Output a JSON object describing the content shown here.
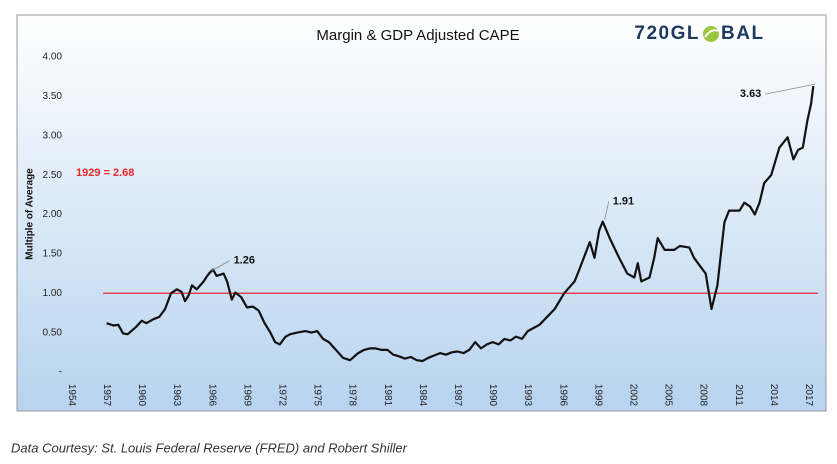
{
  "chart_data": {
    "type": "line",
    "title": "Margin & GDP Adjusted CAPE",
    "brand": [
      "720GL",
      "BAL"
    ],
    "y_label": "Multiple of Average",
    "note": "1929 = 2.68",
    "caption": "Data Courtesy: St. Louis Federal Reserve (FRED) and Robert Shiller",
    "xlim": [
      1953.7,
      2017.8
    ],
    "xticks": [
      1954,
      1957,
      1960,
      1963,
      1966,
      1969,
      1972,
      1975,
      1978,
      1981,
      1984,
      1987,
      1990,
      1993,
      1996,
      1999,
      2002,
      2005,
      2008,
      2011,
      2014,
      2017
    ],
    "ylim": [
      0,
      4
    ],
    "yticks": [
      {
        "value": 0,
        "label": "-"
      },
      {
        "value": 0.5,
        "label": "0.50"
      },
      {
        "value": 1,
        "label": "1.00"
      },
      {
        "value": 1.5,
        "label": "1.50"
      },
      {
        "value": 2,
        "label": "2.00"
      },
      {
        "value": 2.5,
        "label": "2.50"
      },
      {
        "value": 3,
        "label": "3.00"
      },
      {
        "value": 3.5,
        "label": "3.50"
      },
      {
        "value": 4,
        "label": "4.00"
      }
    ],
    "reference_line": {
      "value": 1,
      "color": "#e8262b"
    },
    "series": [
      {
        "name": "Margin & GDP Adjusted CAPE",
        "color": "#111111",
        "x": [
          1957.0,
          1957.6,
          1958.0,
          1958.4,
          1958.8,
          1959.5,
          1960.0,
          1960.4,
          1961.0,
          1961.5,
          1962.0,
          1962.5,
          1963.0,
          1963.4,
          1963.7,
          1964.0,
          1964.3,
          1964.7,
          1965.0,
          1965.3,
          1965.5,
          1965.8,
          1966.1,
          1966.4,
          1967.0,
          1967.3,
          1967.7,
          1968.0,
          1968.5,
          1969.0,
          1969.5,
          1970.0,
          1970.5,
          1971.0,
          1971.4,
          1971.8,
          1972.3,
          1972.7,
          1973.3,
          1974.0,
          1974.5,
          1975.0,
          1975.5,
          1976.0,
          1976.6,
          1977.2,
          1977.8,
          1978.5,
          1979.0,
          1979.5,
          1980.0,
          1980.5,
          1981.0,
          1981.5,
          1982.0,
          1982.5,
          1983.0,
          1983.5,
          1984.0,
          1984.5,
          1985.0,
          1985.5,
          1986.0,
          1986.5,
          1987.0,
          1987.5,
          1988.0,
          1988.5,
          1989.0,
          1989.5,
          1990.0,
          1990.5,
          1991.0,
          1991.5,
          1992.0,
          1992.5,
          1993.0,
          1993.5,
          1994.0,
          1995.3,
          1996.1,
          1997.0,
          1997.4,
          1998.3,
          1998.7,
          1999.1,
          1999.4,
          2000.0,
          2000.8,
          2001.5,
          2002.1,
          2002.4,
          2002.7,
          2003.4,
          2003.8,
          2004.1,
          2004.7,
          2005.5,
          2006.0,
          2006.8,
          2007.2,
          2007.7,
          2008.2,
          2008.7,
          2009.2,
          2009.8,
          2010.2,
          2011.1,
          2011.5,
          2012.0,
          2012.4,
          2012.8,
          2013.2,
          2013.8,
          2014.5,
          2015.2,
          2015.7,
          2016.1,
          2016.5,
          2016.9,
          2017.2,
          2017.4
        ],
        "values": [
          0.62,
          0.59,
          0.6,
          0.49,
          0.48,
          0.57,
          0.65,
          0.62,
          0.67,
          0.7,
          0.8,
          1.0,
          1.05,
          1.02,
          0.9,
          0.97,
          1.1,
          1.05,
          1.1,
          1.15,
          1.2,
          1.26,
          1.3,
          1.22,
          1.25,
          1.15,
          0.92,
          1.01,
          0.95,
          0.82,
          0.83,
          0.78,
          0.62,
          0.5,
          0.38,
          0.35,
          0.45,
          0.48,
          0.5,
          0.52,
          0.5,
          0.52,
          0.42,
          0.38,
          0.28,
          0.18,
          0.15,
          0.24,
          0.28,
          0.3,
          0.3,
          0.28,
          0.28,
          0.22,
          0.2,
          0.17,
          0.19,
          0.15,
          0.14,
          0.18,
          0.21,
          0.24,
          0.22,
          0.25,
          0.26,
          0.24,
          0.28,
          0.38,
          0.3,
          0.35,
          0.38,
          0.35,
          0.42,
          0.4,
          0.45,
          0.42,
          0.52,
          0.56,
          0.6,
          0.8,
          1.0,
          1.15,
          1.3,
          1.65,
          1.45,
          1.8,
          1.91,
          1.7,
          1.45,
          1.25,
          1.2,
          1.38,
          1.15,
          1.2,
          1.45,
          1.7,
          1.55,
          1.55,
          1.6,
          1.58,
          1.45,
          1.35,
          1.25,
          0.8,
          1.1,
          1.9,
          2.05,
          2.05,
          2.15,
          2.1,
          2.0,
          2.15,
          2.4,
          2.5,
          2.85,
          2.98,
          2.7,
          2.82,
          2.85,
          3.2,
          3.4,
          3.63
        ]
      }
    ],
    "annotations": [
      {
        "label": "1.26",
        "x": 1965.8,
        "y": 1.26
      },
      {
        "label": "1.91",
        "x": 1999.4,
        "y": 1.91
      },
      {
        "label": "3.63",
        "x": 2017.4,
        "y": 3.63
      }
    ]
  }
}
